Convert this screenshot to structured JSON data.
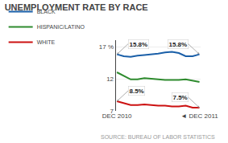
{
  "chart_data": {
    "type": "line",
    "title": "UNEMPLOYMENT RATE BY RACE",
    "source": "SOURCE: BUREAU OF LABOR STATISTICS",
    "categories": [
      "DEC 2010",
      null,
      null,
      null,
      null,
      null,
      null,
      null,
      null,
      null,
      null,
      null,
      "◄ DEC 2011"
    ],
    "series": [
      {
        "name": "BLACK",
        "color": "#1a5fa8",
        "values": [
          15.8,
          15.5,
          15.4,
          15.6,
          15.7,
          15.8,
          15.9,
          16.1,
          16.2,
          16.0,
          15.5,
          15.5,
          15.8
        ]
      },
      {
        "name": "HISPANIC/LATINO",
        "color": "#2e8b2e",
        "values": [
          13.0,
          12.5,
          11.9,
          11.9,
          12.1,
          12.0,
          11.9,
          11.8,
          11.8,
          11.8,
          11.9,
          11.7,
          11.5
        ]
      },
      {
        "name": "WHITE",
        "color": "#cc1111",
        "values": [
          8.5,
          8.2,
          7.9,
          7.9,
          8.0,
          7.9,
          7.8,
          7.8,
          7.7,
          7.7,
          7.8,
          7.5,
          7.5
        ]
      }
    ],
    "annotations": [
      {
        "text": "15.8%",
        "x": 0,
        "y": 15.8
      },
      {
        "text": "15.8%",
        "x": 12,
        "y": 15.8
      },
      {
        "text": "8.5%",
        "x": 0,
        "y": 8.5
      },
      {
        "text": "7.5%",
        "x": 12,
        "y": 7.5
      }
    ],
    "ylim": [
      7,
      18
    ],
    "yticks": [
      7,
      12,
      {
        "value": 17,
        "label": "17 %"
      }
    ],
    "grid": true,
    "legend": "top"
  }
}
